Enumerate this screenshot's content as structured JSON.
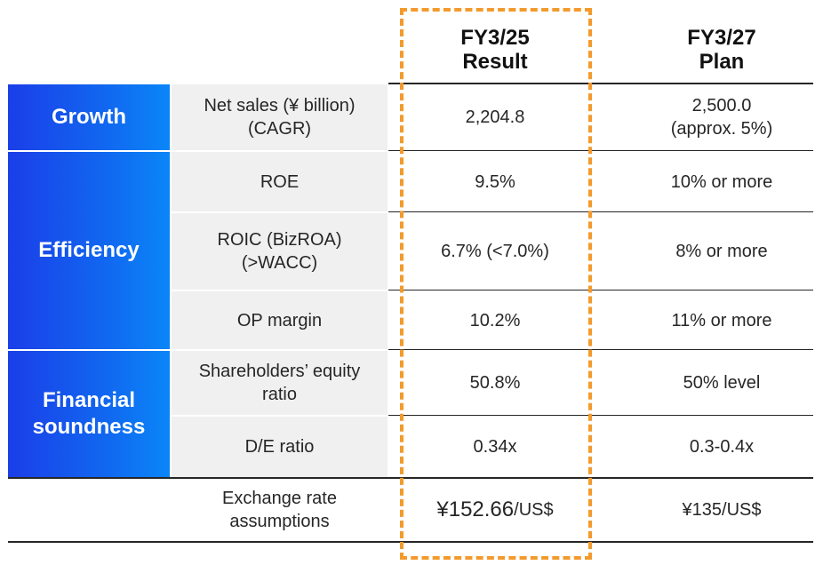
{
  "headers": {
    "result": "FY3/25\nResult",
    "plan": "FY3/27\nPlan"
  },
  "categories": {
    "growth": "Growth",
    "efficiency": "Efficiency",
    "financial": "Financial\nsoundness"
  },
  "rows": [
    {
      "metric": "Net sales (¥ billion)\n(CAGR)",
      "result": "2,204.8",
      "plan": "2,500.0\n(approx. 5%)"
    },
    {
      "metric": "ROE",
      "result": "9.5%",
      "plan": "10% or more"
    },
    {
      "metric": "ROIC (BizROA)\n(>WACC)",
      "result": "6.7% (<7.0%)",
      "plan": "8% or more"
    },
    {
      "metric": "OP margin",
      "result": "10.2%",
      "plan": "11% or more"
    },
    {
      "metric": "Shareholders’ equity\nratio",
      "result": "50.8%",
      "plan": "50% level"
    },
    {
      "metric": "D/E ratio",
      "result": "0.34x",
      "plan": "0.3-0.4x"
    }
  ],
  "exchange": {
    "metric": "Exchange rate\nassumptions",
    "result_amount": "¥152.66",
    "result_unit": "/US$",
    "plan": "¥135/US$"
  },
  "colors": {
    "category_gradient_start": "#1b3ee8",
    "category_gradient_end": "#0a86f7",
    "metric_bg": "#f0f0f0",
    "highlight_dash": "#f39a2d"
  }
}
